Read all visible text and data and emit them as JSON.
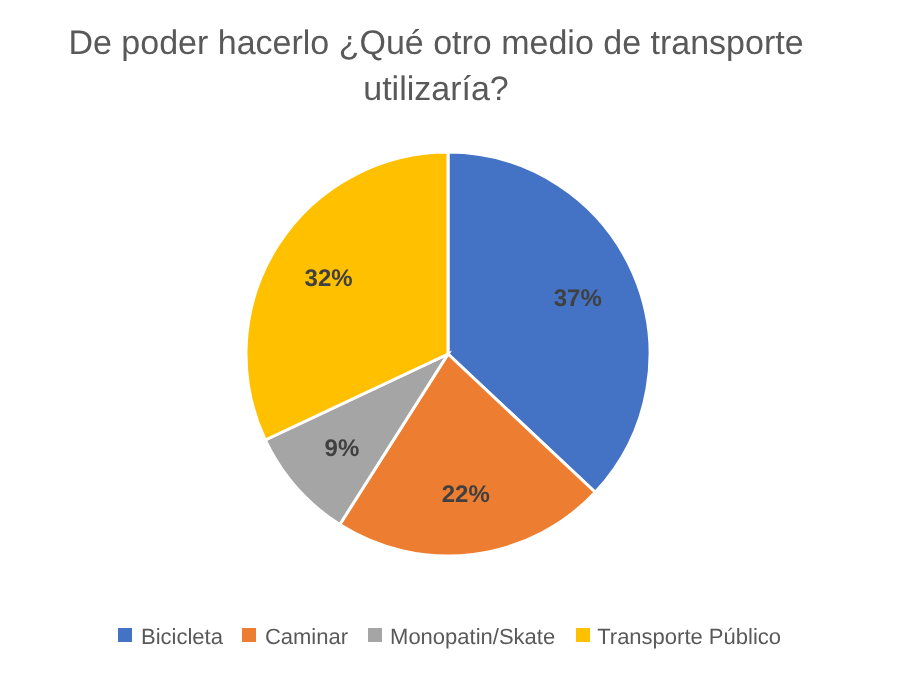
{
  "chart_data": {
    "type": "pie",
    "title": "De poder hacerlo ¿Qué otro medio de transporte utilizaría?",
    "categories": [
      "Bicicleta",
      "Caminar",
      "Monopatin/Skate",
      "Transporte Público"
    ],
    "values": [
      37,
      22,
      9,
      32
    ],
    "colors": [
      "#4472c4",
      "#ed7d31",
      "#a5a5a5",
      "#ffc000"
    ],
    "value_labels": [
      "37%",
      "22%",
      "9%",
      "32%"
    ],
    "legend": "bottom"
  }
}
